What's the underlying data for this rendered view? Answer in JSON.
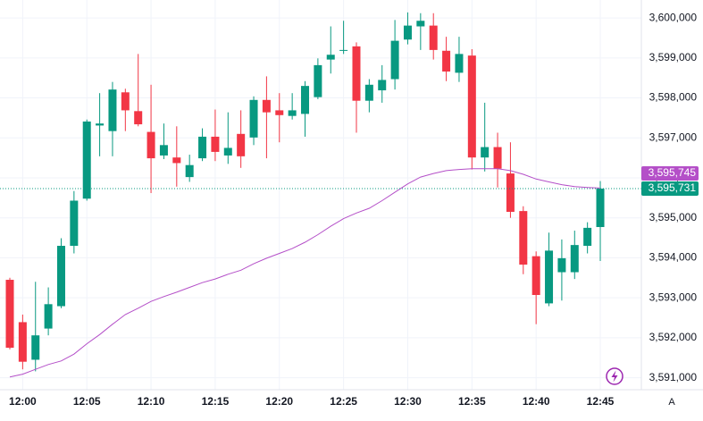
{
  "chart_data": {
    "type": "candlestick",
    "up_color": "#089981",
    "down_color": "#f23645",
    "grid": true,
    "categories": [
      null,
      "12:00",
      null,
      null,
      null,
      null,
      "12:05",
      null,
      null,
      null,
      null,
      "12:10",
      null,
      null,
      null,
      null,
      "12:15",
      null,
      null,
      null,
      null,
      "12:20",
      null,
      null,
      null,
      null,
      "12:25",
      null,
      null,
      null,
      null,
      "12:30",
      null,
      null,
      null,
      null,
      "12:35",
      null,
      null,
      null,
      null,
      "12:40",
      null,
      null,
      null,
      null,
      "12:45"
    ],
    "open": [
      3593450,
      3592390,
      3591450,
      3592230,
      3592790,
      3594300,
      3595480,
      3597310,
      3597170,
      3598140,
      3597670,
      3597150,
      3596560,
      3596510,
      3596020,
      3596490,
      3597030,
      3596560,
      3597100,
      3597010,
      3597950,
      3597690,
      3597550,
      3597600,
      3598020,
      3598960,
      3599180,
      3599290,
      3597930,
      3598190,
      3598470,
      3599460,
      3599790,
      3599810,
      3599180,
      3598630,
      3599060,
      3596510,
      3596770,
      3596110,
      3595170,
      3594040,
      3592860,
      3593640,
      3593640,
      3594300,
      3594770
    ],
    "high": [
      3593500,
      3592580,
      3593400,
      3593260,
      3594490,
      3595670,
      3597460,
      3598120,
      3598400,
      3598230,
      3599100,
      3598330,
      3597360,
      3597290,
      3596580,
      3597240,
      3597710,
      3597640,
      3597690,
      3598040,
      3598540,
      3598120,
      3598120,
      3598420,
      3598990,
      3599790,
      3599930,
      3599390,
      3598470,
      3598820,
      3599950,
      3600140,
      3600120,
      3600120,
      3599530,
      3599530,
      3599220,
      3597880,
      3597130,
      3596890,
      3595290,
      3594160,
      3594630,
      3594460,
      3594680,
      3594890,
      3595920
    ],
    "low": [
      3591710,
      3591210,
      3591160,
      3592060,
      3592740,
      3594110,
      3595430,
      3596540,
      3596540,
      3597170,
      3597290,
      3595620,
      3596470,
      3595780,
      3595900,
      3596420,
      3596420,
      3596350,
      3596250,
      3596820,
      3596490,
      3596890,
      3597460,
      3597030,
      3597970,
      3598610,
      3599100,
      3597130,
      3597640,
      3597880,
      3598210,
      3599340,
      3599200,
      3598960,
      3598420,
      3598400,
      3596210,
      3596160,
      3595760,
      3595000,
      3593590,
      3592340,
      3592790,
      3592930,
      3593470,
      3594110,
      3593920
    ],
    "close": [
      3591750,
      3591400,
      3592060,
      3592840,
      3594300,
      3595430,
      3597410,
      3597360,
      3598210,
      3597690,
      3597340,
      3596490,
      3596820,
      3596370,
      3596320,
      3597030,
      3596650,
      3596750,
      3596540,
      3597950,
      3597640,
      3597570,
      3597690,
      3598300,
      3598820,
      3599080,
      3599200,
      3597930,
      3598330,
      3598450,
      3599430,
      3599810,
      3599930,
      3599200,
      3598660,
      3599100,
      3596510,
      3596770,
      3596230,
      3595150,
      3593830,
      3593070,
      3594180,
      3593990,
      3594320,
      3594750,
      3595731
    ],
    "ma": {
      "color": "#b44fc8",
      "values": [
        3591020,
        3591090,
        3591210,
        3591330,
        3591420,
        3591590,
        3591850,
        3592080,
        3592340,
        3592580,
        3592740,
        3592910,
        3593030,
        3593140,
        3593260,
        3593380,
        3593470,
        3593590,
        3593690,
        3593850,
        3593990,
        3594110,
        3594230,
        3594390,
        3594580,
        3594790,
        3594980,
        3595120,
        3595240,
        3595430,
        3595640,
        3595850,
        3596020,
        3596110,
        3596180,
        3596210,
        3596230,
        3596230,
        3596230,
        3596180,
        3596090,
        3595970,
        3595900,
        3595830,
        3595780,
        3595760,
        3595745
      ]
    },
    "ma_label": {
      "value": 3595745,
      "label": "3,595,745"
    },
    "last_price": {
      "value": 3595731,
      "label": "3,595,731"
    },
    "ylim": [
      3590700,
      3600450
    ],
    "yticks": [
      {
        "value": 3591000,
        "label": "3,591,000"
      },
      {
        "value": 3592000,
        "label": "3,592,000"
      },
      {
        "value": 3593000,
        "label": "3,593,000"
      },
      {
        "value": 3594000,
        "label": "3,594,000"
      },
      {
        "value": 3595000,
        "label": "3,595,000"
      },
      {
        "value": 3596000,
        "label": "3,596,000"
      },
      {
        "value": 3597000,
        "label": "3,597,000"
      },
      {
        "value": 3598000,
        "label": "3,598,000"
      },
      {
        "value": 3599000,
        "label": "3,599,000"
      },
      {
        "value": 3600000,
        "label": "3,600,000"
      }
    ],
    "auto_scale_label": "A"
  }
}
